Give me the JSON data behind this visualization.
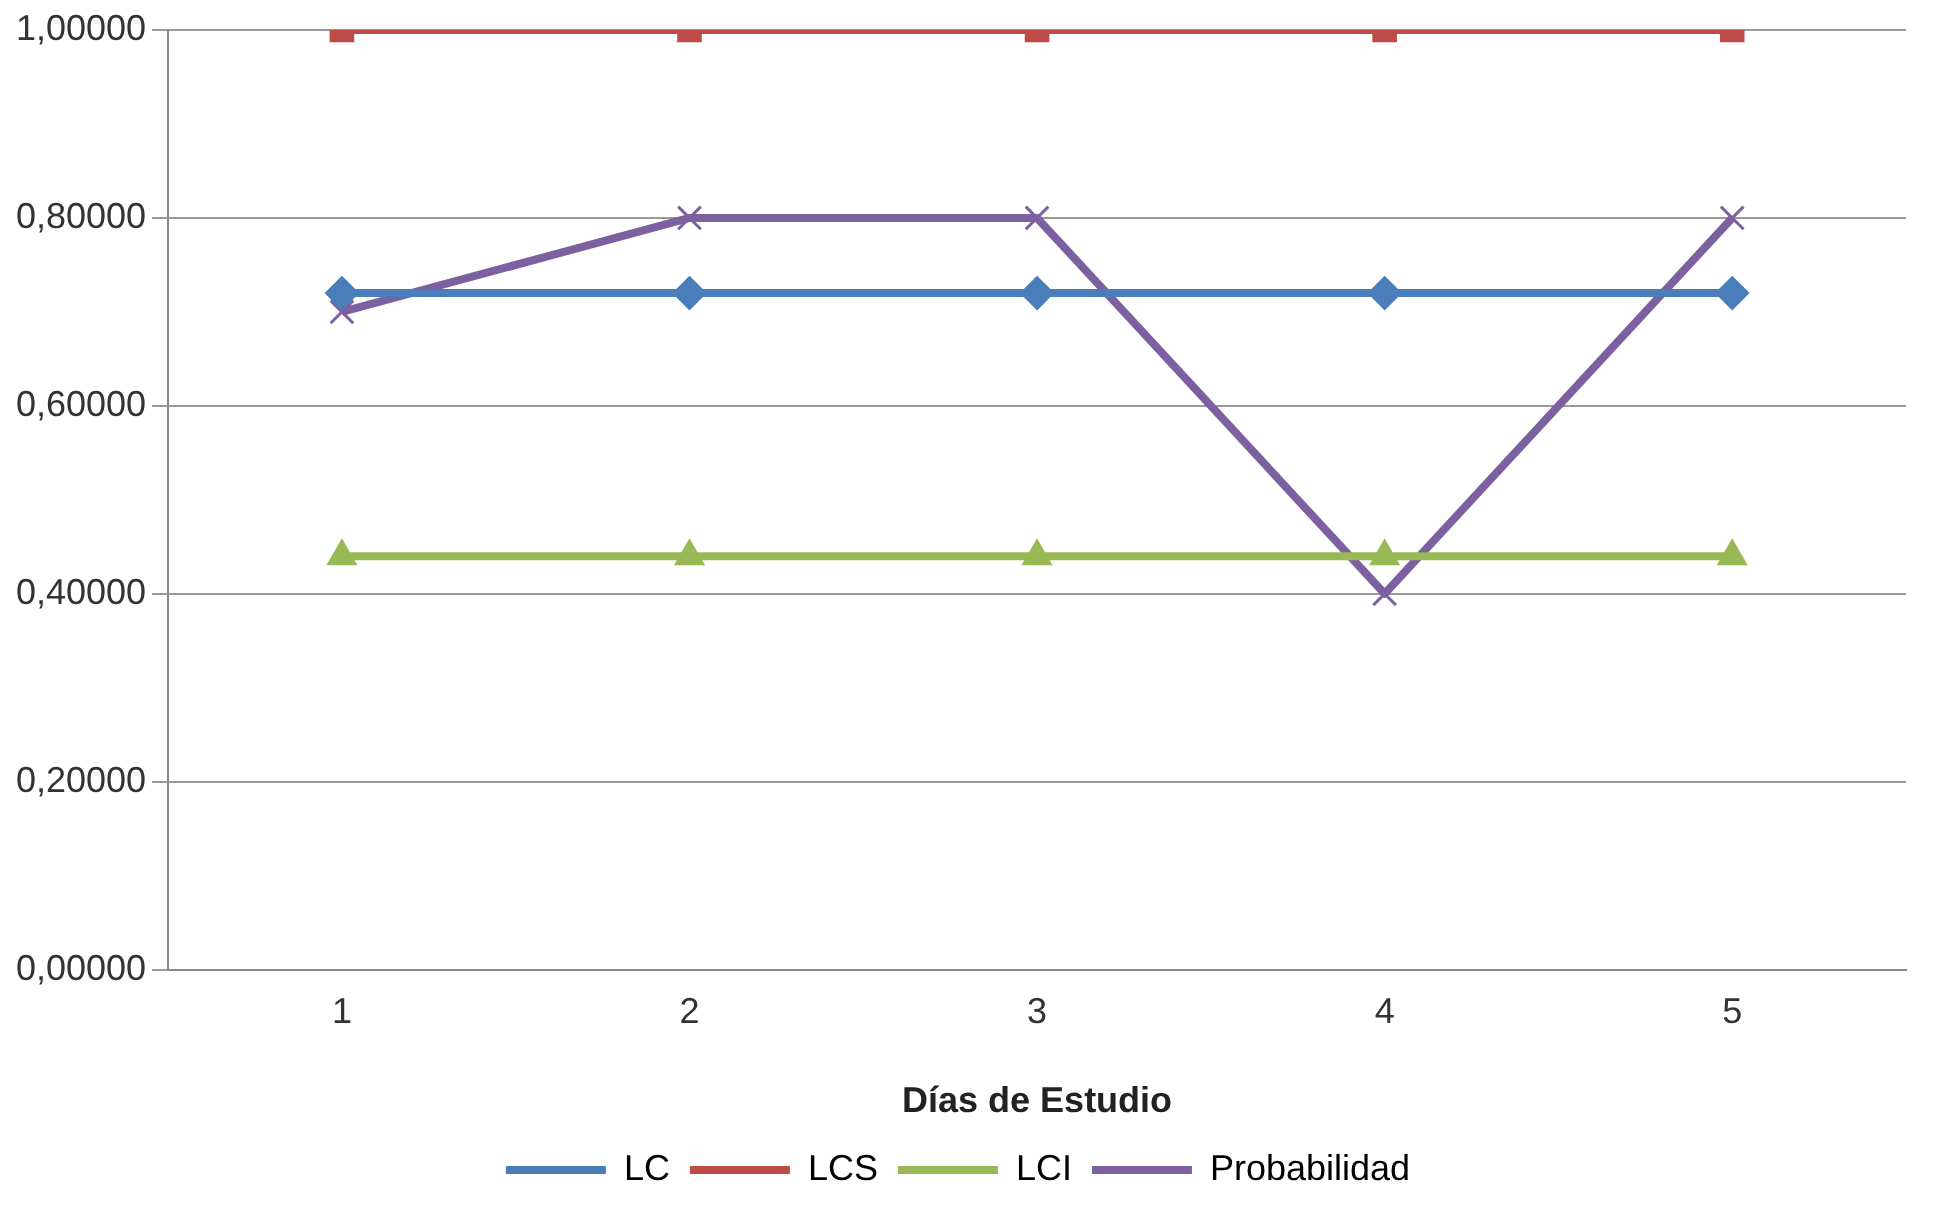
{
  "chart_data": {
    "type": "line",
    "xlabel": "Días de Estudio",
    "categories": [
      "1",
      "2",
      "3",
      "4",
      "5"
    ],
    "series": [
      {
        "name": "LC",
        "color": "#4a7ebb",
        "marker": "diamond",
        "values": [
          0.72,
          0.72,
          0.72,
          0.72,
          0.72
        ]
      },
      {
        "name": "LCS",
        "color": "#be4b48",
        "marker": "square",
        "values": [
          1,
          1,
          1,
          1,
          1
        ]
      },
      {
        "name": "LCI",
        "color": "#98b954",
        "marker": "triangle",
        "values": [
          0.44,
          0.44,
          0.44,
          0.44,
          0.44
        ]
      },
      {
        "name": "Probabilidad",
        "color": "#7d60a0",
        "marker": "cross",
        "values": [
          0.7,
          0.8,
          0.8,
          0.4,
          0.8
        ]
      }
    ],
    "ylim": [
      0,
      1
    ],
    "yticks": [
      {
        "value": 0,
        "label": "0,00000"
      },
      {
        "value": 0.2,
        "label": "0,20000"
      },
      {
        "value": 0.4,
        "label": "0,40000"
      },
      {
        "value": 0.6,
        "label": "0,60000"
      },
      {
        "value": 0.8,
        "label": "0,80000"
      },
      {
        "value": 1,
        "label": "1,00000"
      }
    ],
    "grid": "y",
    "legend": "bottom",
    "line_style": "solid"
  }
}
